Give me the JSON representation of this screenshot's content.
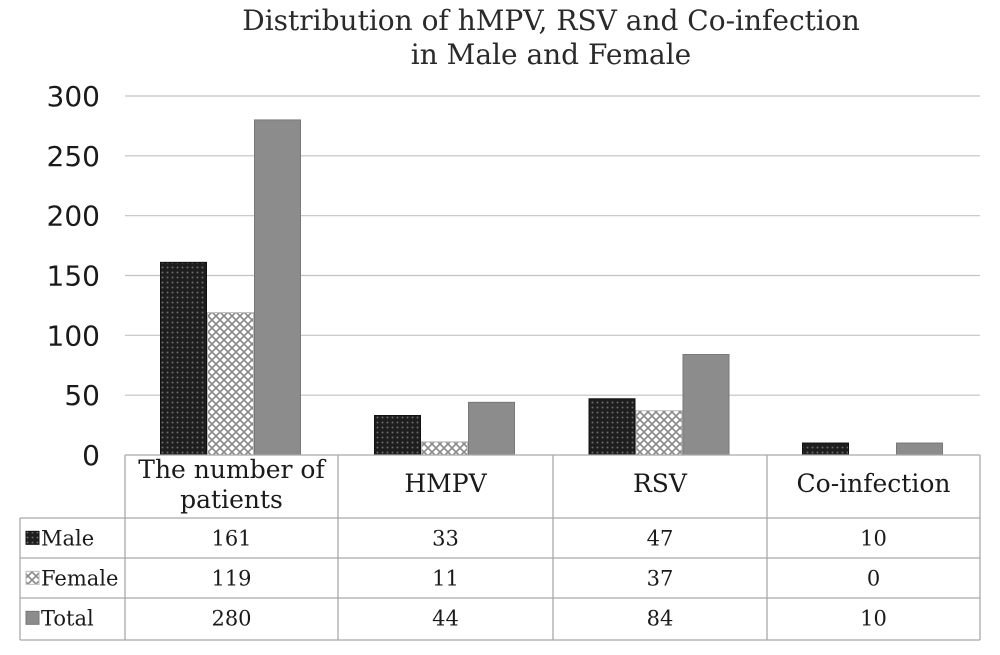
{
  "chart_data": {
    "type": "bar",
    "title_lines": [
      "Distribution of hMPV, RSV and Co-infection",
      "in Male and Female"
    ],
    "xlabel": "",
    "ylabel": "",
    "categories": [
      {
        "lines": [
          "The number of",
          "patients"
        ]
      },
      {
        "lines": [
          "HMPV"
        ]
      },
      {
        "lines": [
          "RSV"
        ]
      },
      {
        "lines": [
          "Co-infection"
        ]
      }
    ],
    "series": [
      {
        "name": "Male",
        "values": [
          161,
          33,
          47,
          10
        ],
        "color": "#2b2b2b",
        "pattern": "dark-dots"
      },
      {
        "name": "Female",
        "values": [
          119,
          11,
          37,
          0
        ],
        "color": "#ffffff",
        "pattern": "light-diamond"
      },
      {
        "name": "Total",
        "values": [
          280,
          44,
          84,
          10
        ],
        "color": "#8c8c8c",
        "pattern": "solid-gray"
      }
    ],
    "ylim": [
      0,
      300
    ],
    "yticks": [
      0,
      50,
      100,
      150,
      200,
      250,
      300
    ],
    "grid": true,
    "legend": "data-table",
    "data_table": [
      [
        "161",
        "33",
        "47",
        "10"
      ],
      [
        "119",
        "11",
        "37",
        "0"
      ],
      [
        "280",
        "44",
        "84",
        "10"
      ]
    ]
  }
}
